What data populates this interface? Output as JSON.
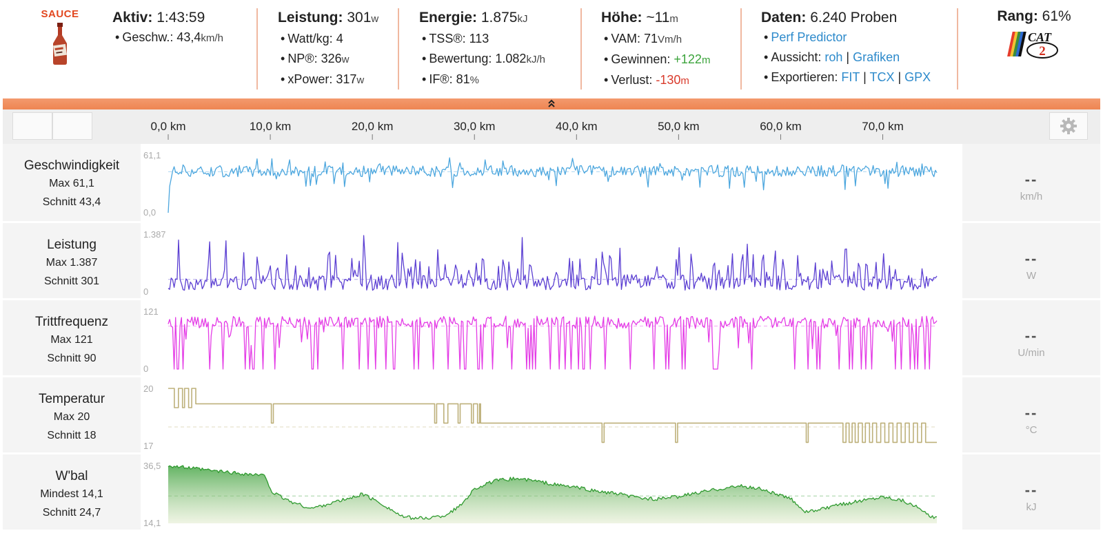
{
  "logo": {
    "brand": "SAUCE"
  },
  "summary": {
    "active": {
      "label": "Aktiv:",
      "value": "1:43:59"
    },
    "speed": {
      "label": "Geschw.:",
      "value": "43,4",
      "unit": "km/h"
    },
    "power": {
      "label": "Leistung:",
      "value": "301",
      "unit": "w"
    },
    "wkg": {
      "label": "Watt/kg:",
      "value": "4"
    },
    "np": {
      "label": "NP®:",
      "value": "326",
      "unit": "w"
    },
    "xpower": {
      "label": "xPower:",
      "value": "317",
      "unit": "w"
    },
    "energy": {
      "label": "Energie:",
      "value": "1.875",
      "unit": "kJ"
    },
    "tss": {
      "label": "TSS®:",
      "value": "113"
    },
    "rating": {
      "label": "Bewertung:",
      "value": "1.082",
      "unit": "kJ/h"
    },
    "if": {
      "label": "IF®:",
      "value": "81",
      "unit": "%"
    },
    "elevation": {
      "label": "Höhe:",
      "value": "~11",
      "unit": "m"
    },
    "vam": {
      "label": "VAM:",
      "value": "71",
      "unit": "Vm/h"
    },
    "gain": {
      "label": "Gewinnen:",
      "value": "+122",
      "unit": "m"
    },
    "loss": {
      "label": "Verlust:",
      "value": "-130",
      "unit": "m"
    },
    "data": {
      "label": "Daten:",
      "value": "6.240 Proben"
    },
    "perf_predictor": "Perf Predictor",
    "view": {
      "label": "Aussicht:",
      "raw": "roh",
      "sep": "|",
      "graphs": "Grafiken"
    },
    "export": {
      "label": "Exportieren:",
      "fit": "FIT",
      "sep1": "|",
      "tcx": "TCX",
      "sep2": "|",
      "gpx": "GPX"
    },
    "rank": {
      "label": "Rang:",
      "value": "61%",
      "badge": "CAT",
      "badge_num": "2"
    }
  },
  "toggle": {
    "icon": "double-chevron-up-icon",
    "glyph": "»"
  },
  "axis": {
    "ticks": [
      "0,0 km",
      "10,0 km",
      "20,0 km",
      "30,0 km",
      "40,0 km",
      "50,0 km",
      "60,0 km",
      "70,0 km"
    ],
    "tick_values_km": [
      0,
      10,
      20,
      30,
      40,
      50,
      60,
      70
    ],
    "total_km": 75.3
  },
  "colors": {
    "speed": "#4ba6de",
    "power": "#5b3fd2",
    "cadence": "#e43be6",
    "temperature": "#bdb07a",
    "wbal": "#2f9a2f",
    "accent": "#ee8552"
  },
  "charts": [
    {
      "key": "speed",
      "title": "Geschwindigkeit",
      "stat1": "Max 61,1",
      "stat2": "Schnitt 43,4",
      "ymax_label": "61,1",
      "ymin_label": "0,0",
      "ymin": 0,
      "ymax": 61.1,
      "avg": 43.4,
      "readout": "--",
      "unit": "km/h"
    },
    {
      "key": "power",
      "title": "Leistung",
      "stat1": "Max 1.387",
      "stat2": "Schnitt 301",
      "ymax_label": "1.387",
      "ymin_label": "0",
      "ymin": 0,
      "ymax": 1387,
      "avg": 301,
      "readout": "--",
      "unit": "W"
    },
    {
      "key": "cadence",
      "title": "Trittfrequenz",
      "stat1": "Max 121",
      "stat2": "Schnitt 90",
      "ymax_label": "121",
      "ymin_label": "0",
      "ymin": 0,
      "ymax": 121,
      "avg": 90,
      "readout": "--",
      "unit": "U/min"
    },
    {
      "key": "temperature",
      "title": "Temperatur",
      "stat1": "Max 20",
      "stat2": "Schnitt 18",
      "ymax_label": "20",
      "ymin_label": "17",
      "ymin": 17,
      "ymax": 20,
      "avg": 18,
      "readout": "--",
      "unit": "°C"
    },
    {
      "key": "wbal",
      "title": "W'bal",
      "stat1": "Mindest 14,1",
      "stat2": "Schnitt 24,7",
      "ymax_label": "36,5",
      "ymin_label": "14,1",
      "ymin": 14.1,
      "ymax": 36.5,
      "avg": 24.7,
      "readout": "--",
      "unit": "kJ"
    }
  ]
}
